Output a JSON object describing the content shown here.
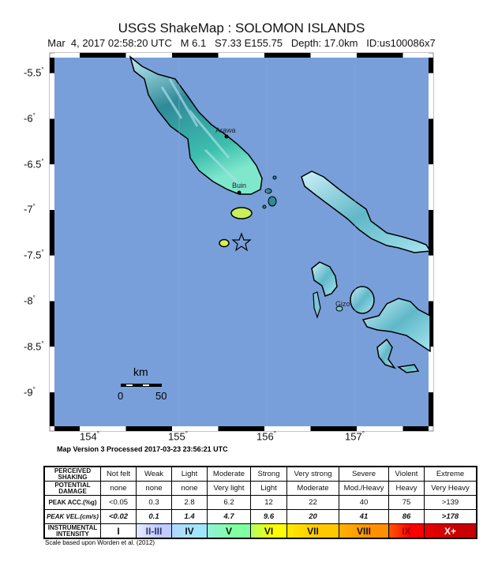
{
  "title": "USGS ShakeMap : SOLOMON ISLANDS",
  "subtitle": "Mar  4, 2017 02:58:20 UTC   M 6.1   S7.33 E155.75   Depth: 17.0km   ID:us100086x7",
  "map": {
    "lat_ticks": [
      "-5.5",
      "-6",
      "-6.5",
      "-7",
      "-7.5",
      "-8",
      "-8.5",
      "-9"
    ],
    "lon_ticks": [
      "154",
      "155",
      "156",
      "157"
    ],
    "places": [
      {
        "name": "Arawa"
      },
      {
        "name": "Buin"
      },
      {
        "name": "Gizo"
      }
    ],
    "epicenter_icon": "star-icon",
    "scale": {
      "unit": "km",
      "min": "0",
      "max": "50"
    },
    "colors": {
      "water": "#789fda",
      "land": "#3aa8a8",
      "shortland": "#c8f05a"
    }
  },
  "map_version": "Map Version 3 Processed 2017-03-23 23:56:21 UTC",
  "legend": {
    "rows": [
      {
        "label": "PERCEIVED SHAKING",
        "cells": [
          "Not felt",
          "Weak",
          "Light",
          "Moderate",
          "Strong",
          "Very strong",
          "Severe",
          "Violent",
          "Extreme"
        ]
      },
      {
        "label": "POTENTIAL DAMAGE",
        "cells": [
          "none",
          "none",
          "none",
          "Very light",
          "Light",
          "Moderate",
          "Mod./Heavy",
          "Heavy",
          "Very Heavy"
        ]
      },
      {
        "label": "PEAK ACC.(%g)",
        "cells": [
          "<0.05",
          "0.3",
          "2.8",
          "6.2",
          "12",
          "22",
          "40",
          "75",
          ">139"
        ]
      },
      {
        "label": "PEAK VEL.(cm/s)",
        "cells": [
          "<0.02",
          "0.1",
          "1.4",
          "4.7",
          "9.6",
          "20",
          "41",
          "86",
          ">178"
        ]
      },
      {
        "label": "INSTRUMENTAL INTENSITY",
        "cells": [
          "I",
          "II-III",
          "IV",
          "V",
          "VI",
          "VII",
          "VIII",
          "IX",
          "X+"
        ]
      }
    ],
    "intensity_colors": [
      "#ffffff",
      "#bfccff",
      "#a0e6ff",
      "#80ffa0",
      "#ffff00",
      "#ffc800",
      "#ff9100",
      "#ff0000",
      "#c80000"
    ],
    "credit": "Scale based upon Worden et al. (2012)"
  }
}
